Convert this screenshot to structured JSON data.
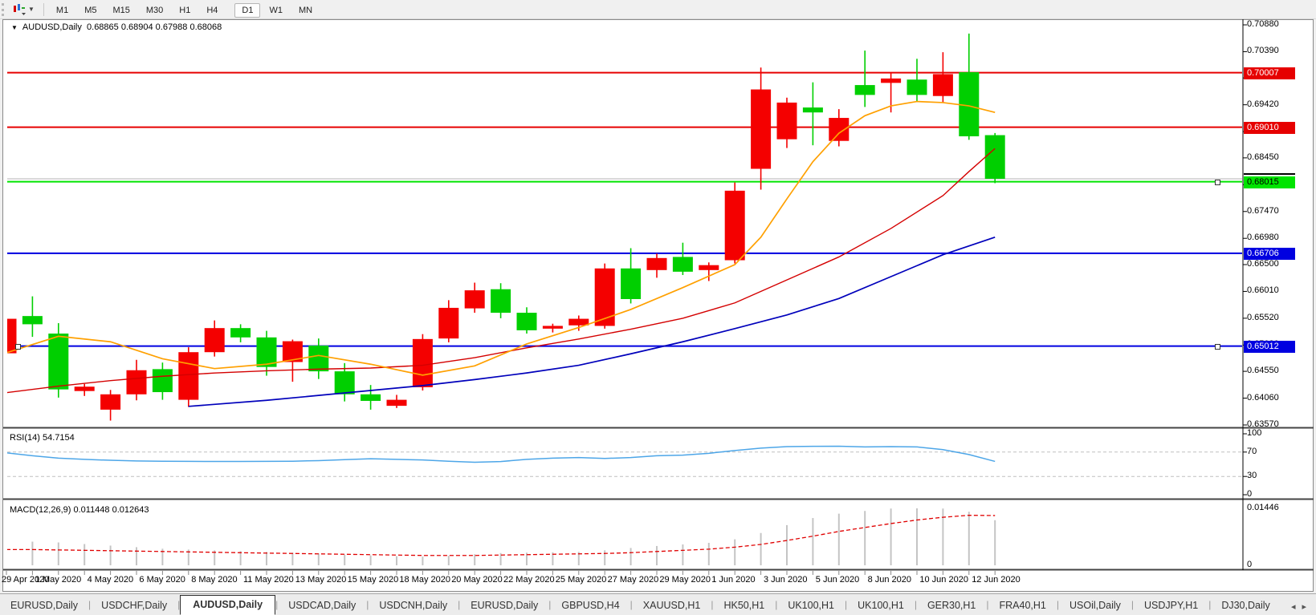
{
  "toolbar": {
    "timeframes": [
      "M1",
      "M5",
      "M15",
      "M30",
      "H1",
      "H4",
      "D1",
      "W1",
      "MN"
    ],
    "active_timeframe": "D1"
  },
  "chart": {
    "title": "AUDUSD,Daily",
    "ohlc_text": "0.68865 0.68904 0.67988 0.68068",
    "colors": {
      "bull": "#f40000",
      "bear": "#00cf00",
      "ma_fast": "#ffa000",
      "ma_mid": "#d40000",
      "ma_slow": "#0000bb",
      "current_price_line": "#b4b4b4"
    },
    "price_axis_labels": [
      "0.70880",
      "0.70390",
      "0.69910",
      "0.69420",
      "0.68930",
      "0.68450",
      "0.67960",
      "0.67470",
      "0.66980",
      "0.66500",
      "0.66010",
      "0.65520",
      "0.65030",
      "0.64550",
      "0.64060",
      "0.63570"
    ],
    "hlines": [
      {
        "price": 0.70007,
        "label": "0.70007",
        "color": "#e60000",
        "text_color": "#ffffff"
      },
      {
        "price": 0.6901,
        "label": "0.69010",
        "color": "#e60000",
        "text_color": "#ffffff"
      },
      {
        "price": 0.68015,
        "label": "0.68015",
        "color": "#00e400",
        "text_color": "#000000"
      },
      {
        "price": 0.66706,
        "label": "0.66706",
        "color": "#0000e0",
        "text_color": "#ffffff"
      },
      {
        "price": 0.65012,
        "label": "0.65012",
        "color": "#0000e0",
        "text_color": "#ffffff"
      }
    ],
    "current_price": 0.68068,
    "candles": [
      {
        "o": 0.6488,
        "h": 0.6561,
        "l": 0.6478,
        "c": 0.6551
      },
      {
        "o": 0.6556,
        "h": 0.6592,
        "l": 0.6518,
        "c": 0.6541
      },
      {
        "o": 0.6524,
        "h": 0.6543,
        "l": 0.6407,
        "c": 0.6422
      },
      {
        "o": 0.6419,
        "h": 0.6432,
        "l": 0.641,
        "c": 0.6427
      },
      {
        "o": 0.6385,
        "h": 0.6421,
        "l": 0.6365,
        "c": 0.6413
      },
      {
        "o": 0.6413,
        "h": 0.6476,
        "l": 0.6402,
        "c": 0.6457
      },
      {
        "o": 0.6459,
        "h": 0.6471,
        "l": 0.6403,
        "c": 0.6417
      },
      {
        "o": 0.6403,
        "h": 0.6499,
        "l": 0.639,
        "c": 0.649
      },
      {
        "o": 0.649,
        "h": 0.6548,
        "l": 0.6482,
        "c": 0.6534
      },
      {
        "o": 0.6534,
        "h": 0.6541,
        "l": 0.6508,
        "c": 0.6517
      },
      {
        "o": 0.6517,
        "h": 0.6529,
        "l": 0.6447,
        "c": 0.6463
      },
      {
        "o": 0.6472,
        "h": 0.6513,
        "l": 0.6436,
        "c": 0.651
      },
      {
        "o": 0.6502,
        "h": 0.6515,
        "l": 0.6441,
        "c": 0.6455
      },
      {
        "o": 0.6455,
        "h": 0.647,
        "l": 0.64,
        "c": 0.6413
      },
      {
        "o": 0.6413,
        "h": 0.643,
        "l": 0.6385,
        "c": 0.6401
      },
      {
        "o": 0.6392,
        "h": 0.6412,
        "l": 0.6388,
        "c": 0.6403
      },
      {
        "o": 0.6426,
        "h": 0.6523,
        "l": 0.642,
        "c": 0.6514
      },
      {
        "o": 0.6515,
        "h": 0.6585,
        "l": 0.6508,
        "c": 0.6571
      },
      {
        "o": 0.657,
        "h": 0.6617,
        "l": 0.6562,
        "c": 0.6603
      },
      {
        "o": 0.6605,
        "h": 0.6616,
        "l": 0.6552,
        "c": 0.6562
      },
      {
        "o": 0.6562,
        "h": 0.6572,
        "l": 0.6524,
        "c": 0.653
      },
      {
        "o": 0.6533,
        "h": 0.6542,
        "l": 0.6526,
        "c": 0.6538
      },
      {
        "o": 0.6539,
        "h": 0.6557,
        "l": 0.6529,
        "c": 0.6551
      },
      {
        "o": 0.6538,
        "h": 0.6652,
        "l": 0.6533,
        "c": 0.6643
      },
      {
        "o": 0.6643,
        "h": 0.668,
        "l": 0.6579,
        "c": 0.6587
      },
      {
        "o": 0.664,
        "h": 0.667,
        "l": 0.6626,
        "c": 0.6662
      },
      {
        "o": 0.6664,
        "h": 0.669,
        "l": 0.6631,
        "c": 0.6637
      },
      {
        "o": 0.664,
        "h": 0.6654,
        "l": 0.662,
        "c": 0.6649
      },
      {
        "o": 0.6658,
        "h": 0.68,
        "l": 0.6652,
        "c": 0.6785
      },
      {
        "o": 0.6825,
        "h": 0.701,
        "l": 0.6787,
        "c": 0.697
      },
      {
        "o": 0.6879,
        "h": 0.6955,
        "l": 0.6863,
        "c": 0.6946
      },
      {
        "o": 0.6937,
        "h": 0.6983,
        "l": 0.6868,
        "c": 0.6928
      },
      {
        "o": 0.6876,
        "h": 0.6934,
        "l": 0.6866,
        "c": 0.6918
      },
      {
        "o": 0.6978,
        "h": 0.7041,
        "l": 0.6938,
        "c": 0.696
      },
      {
        "o": 0.6982,
        "h": 0.7,
        "l": 0.6928,
        "c": 0.699
      },
      {
        "o": 0.6988,
        "h": 0.7026,
        "l": 0.6948,
        "c": 0.696
      },
      {
        "o": 0.6958,
        "h": 0.7038,
        "l": 0.6946,
        "c": 0.6998
      },
      {
        "o": 0.70015,
        "h": 0.7072,
        "l": 0.6878,
        "c": 0.68844
      },
      {
        "o": 0.68865,
        "h": 0.68904,
        "l": 0.67988,
        "c": 0.68068
      }
    ],
    "ma_fast_points": [
      [
        0,
        0.6489
      ],
      [
        2,
        0.6519
      ],
      [
        4,
        0.6509
      ],
      [
        6,
        0.6478
      ],
      [
        8,
        0.646
      ],
      [
        10,
        0.6468
      ],
      [
        12,
        0.6484
      ],
      [
        14,
        0.6468
      ],
      [
        16,
        0.6448
      ],
      [
        18,
        0.6465
      ],
      [
        20,
        0.6505
      ],
      [
        22,
        0.6535
      ],
      [
        24,
        0.6568
      ],
      [
        26,
        0.6608
      ],
      [
        28,
        0.665
      ],
      [
        29,
        0.67
      ],
      [
        30,
        0.677
      ],
      [
        31,
        0.6838
      ],
      [
        32,
        0.689
      ],
      [
        33,
        0.6922
      ],
      [
        34,
        0.694
      ],
      [
        35,
        0.6948
      ],
      [
        36,
        0.6946
      ],
      [
        37,
        0.694
      ],
      [
        38,
        0.6928
      ]
    ],
    "ma_mid_points": [
      [
        0,
        0.6416
      ],
      [
        2,
        0.6428
      ],
      [
        4,
        0.6438
      ],
      [
        6,
        0.6446
      ],
      [
        8,
        0.6452
      ],
      [
        10,
        0.6456
      ],
      [
        12,
        0.6459
      ],
      [
        14,
        0.6461
      ],
      [
        16,
        0.6466
      ],
      [
        18,
        0.648
      ],
      [
        20,
        0.6498
      ],
      [
        22,
        0.6514
      ],
      [
        24,
        0.6532
      ],
      [
        26,
        0.6552
      ],
      [
        28,
        0.658
      ],
      [
        30,
        0.6622
      ],
      [
        32,
        0.6664
      ],
      [
        34,
        0.6716
      ],
      [
        36,
        0.6776
      ],
      [
        37,
        0.682
      ],
      [
        38,
        0.6862
      ]
    ],
    "ma_slow_points": [
      [
        7,
        0.6391
      ],
      [
        10,
        0.6402
      ],
      [
        12,
        0.6411
      ],
      [
        14,
        0.642
      ],
      [
        16,
        0.6429
      ],
      [
        18,
        0.644
      ],
      [
        20,
        0.6452
      ],
      [
        22,
        0.6466
      ],
      [
        24,
        0.6487
      ],
      [
        26,
        0.6509
      ],
      [
        28,
        0.6533
      ],
      [
        30,
        0.6558
      ],
      [
        32,
        0.6588
      ],
      [
        34,
        0.6628
      ],
      [
        36,
        0.6668
      ],
      [
        38,
        0.67
      ]
    ]
  },
  "rsi": {
    "label": "RSI(14) 54.7154",
    "level_labels": [
      "100",
      "70",
      "30",
      "0"
    ],
    "levels": [
      100,
      70,
      30,
      0
    ],
    "dashed_levels": [
      70,
      30
    ],
    "color": "#4da6e8",
    "values": [
      68.8,
      64,
      60,
      58,
      56.5,
      55.5,
      55,
      54.8,
      54.6,
      54.6,
      54.8,
      55,
      56,
      57.5,
      59,
      58,
      57,
      55,
      53.3,
      54.5,
      58,
      60,
      61,
      59.5,
      61,
      64,
      65,
      68,
      72.5,
      76.5,
      79,
      79.5,
      79.6,
      78.5,
      79,
      78.5,
      74,
      66,
      54.7
    ]
  },
  "macd": {
    "label": "MACD(12,26,9) 0.011448 0.012643",
    "scale_max_label": "0.01446",
    "scale_max": 0.01446,
    "zero_label": "0",
    "hist_color": "#c4c4c4",
    "signal_color": "#e00000",
    "hist": [
      0.0063,
      0.006,
      0.0058,
      0.0054,
      0.005,
      0.0046,
      0.0042,
      0.004,
      0.0038,
      0.0036,
      0.0034,
      0.0032,
      0.003,
      0.0027,
      0.0025,
      0.0023,
      0.0022,
      0.0024,
      0.0028,
      0.0031,
      0.0032,
      0.0033,
      0.0034,
      0.0038,
      0.0044,
      0.0049,
      0.0053,
      0.0057,
      0.0066,
      0.0082,
      0.0102,
      0.012,
      0.0131,
      0.0138,
      0.0144,
      0.01446,
      0.0144,
      0.0136,
      0.01145
    ],
    "signal": [
      0.004,
      0.004,
      0.0039,
      0.0038,
      0.0037,
      0.0036,
      0.0035,
      0.0034,
      0.0033,
      0.0032,
      0.0031,
      0.003,
      0.0029,
      0.0028,
      0.0027,
      0.0026,
      0.0025,
      0.0025,
      0.0025,
      0.0026,
      0.0027,
      0.0028,
      0.0029,
      0.003,
      0.0032,
      0.0035,
      0.0038,
      0.0041,
      0.0046,
      0.0053,
      0.0063,
      0.0074,
      0.0086,
      0.0096,
      0.0106,
      0.0115,
      0.0122,
      0.0127,
      0.01264
    ]
  },
  "date_axis": {
    "labels": [
      {
        "i": 0,
        "text": "29 Apr 2020"
      },
      {
        "i": 2,
        "text": "1 May 2020"
      },
      {
        "i": 4,
        "text": "4 May 2020"
      },
      {
        "i": 6,
        "text": "6 May 2020"
      },
      {
        "i": 8,
        "text": "8 May 2020"
      },
      {
        "i": 10,
        "text": "11 May 2020"
      },
      {
        "i": 12,
        "text": "13 May 2020"
      },
      {
        "i": 14,
        "text": "15 May 2020"
      },
      {
        "i": 16,
        "text": "18 May 2020"
      },
      {
        "i": 18,
        "text": "20 May 2020"
      },
      {
        "i": 20,
        "text": "22 May 2020"
      },
      {
        "i": 22,
        "text": "25 May 2020"
      },
      {
        "i": 24,
        "text": "27 May 2020"
      },
      {
        "i": 26,
        "text": "29 May 2020"
      },
      {
        "i": 28,
        "text": "1 Jun 2020"
      },
      {
        "i": 30,
        "text": "3 Jun 2020"
      },
      {
        "i": 32,
        "text": "5 Jun 2020"
      },
      {
        "i": 34,
        "text": "8 Jun 2020"
      },
      {
        "i": 36,
        "text": "10 Jun 2020"
      },
      {
        "i": 38,
        "text": "12 Jun 2020"
      }
    ]
  },
  "tabs": {
    "items": [
      "EURUSD,Daily",
      "USDCHF,Daily",
      "AUDUSD,Daily",
      "USDCAD,Daily",
      "USDCNH,Daily",
      "EURUSD,Daily",
      "GBPUSD,H4",
      "XAUUSD,H1",
      "HK50,H1",
      "UK100,H1",
      "UK100,H1",
      "GER30,H1",
      "FRA40,H1",
      "USOil,Daily",
      "USDJPY,H1",
      "DJ30,Daily"
    ],
    "active_index": 2,
    "nav_left": "◂",
    "nav_right": "▸"
  }
}
